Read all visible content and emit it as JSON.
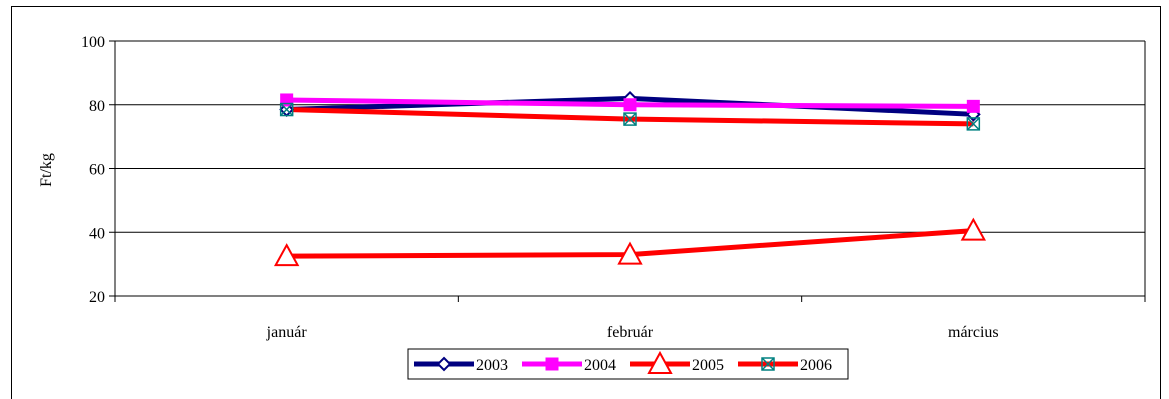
{
  "chart_data": {
    "type": "line",
    "title": "",
    "xlabel": "",
    "ylabel": "Ft/kg",
    "categories": [
      "január",
      "február",
      "március"
    ],
    "ylim": [
      20,
      100
    ],
    "yticks": [
      20,
      40,
      60,
      80,
      100
    ],
    "grid": true,
    "legend_position": "bottom",
    "series": [
      {
        "name": "2003",
        "values": [
          78.5,
          82,
          77
        ],
        "color": "#000080",
        "marker": "diamond"
      },
      {
        "name": "2004",
        "values": [
          81.5,
          80,
          79.5
        ],
        "color": "#ff00ff",
        "marker": "square"
      },
      {
        "name": "2005",
        "values": [
          32.5,
          33,
          40.5
        ],
        "color": "#ff0000",
        "marker": "triangle"
      },
      {
        "name": "2006",
        "values": [
          78.5,
          75.5,
          74
        ],
        "color": "#ff0000",
        "marker": "xsquare"
      }
    ]
  }
}
